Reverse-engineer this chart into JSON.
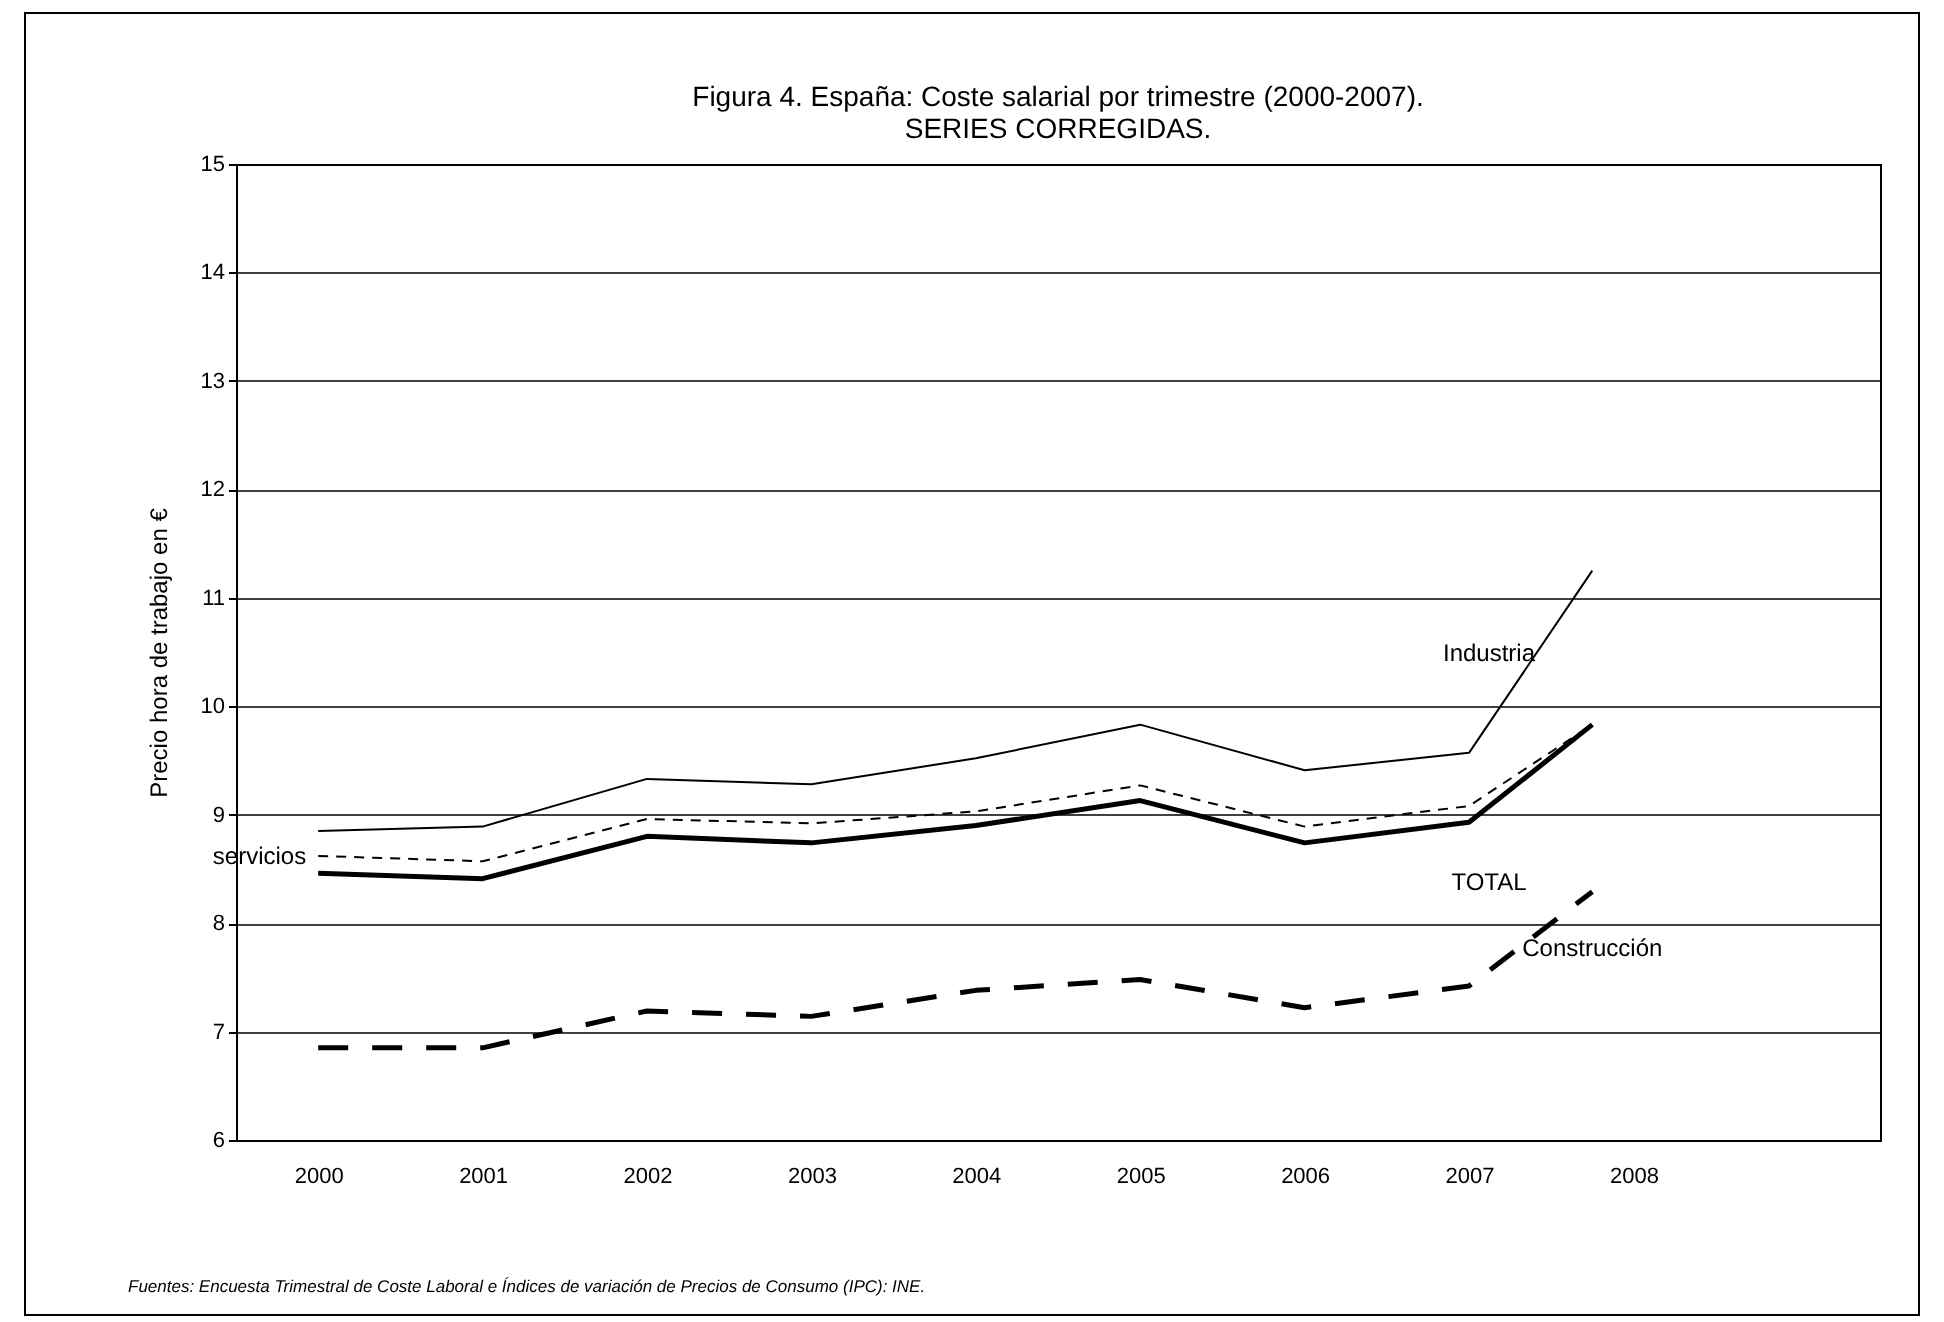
{
  "chart_data": {
    "type": "line",
    "title": "Figura 4. España: Coste salarial por trimestre (2000-2007).",
    "subtitle": "SERIES CORREGIDAS.",
    "ylabel": "Precio hora de trabajo en €",
    "x": [
      2000,
      2001,
      2002,
      2003,
      2004,
      2005,
      2006,
      2007,
      2007.75
    ],
    "xlim": [
      1999.5,
      2009.5
    ],
    "xticks": [
      2000,
      2001,
      2002,
      2003,
      2004,
      2005,
      2006,
      2007,
      2008
    ],
    "ylim": [
      6,
      15
    ],
    "yticks": [
      6,
      7,
      8,
      9,
      10,
      11,
      12,
      13,
      14,
      15
    ],
    "series": [
      {
        "name": "Industria",
        "color": "#000000",
        "line_style": "solid",
        "values": [
          8.85,
          8.89,
          9.33,
          9.28,
          9.52,
          9.83,
          9.41,
          9.57,
          11.25
        ]
      },
      {
        "name": "servicios",
        "color": "#000000",
        "line_style": "dashed",
        "values": [
          8.62,
          8.57,
          8.96,
          8.92,
          9.03,
          9.27,
          8.89,
          9.08,
          9.83
        ]
      },
      {
        "name": "TOTAL",
        "color": "#000000",
        "line_style": "solid",
        "values": [
          8.46,
          8.41,
          8.8,
          8.74,
          8.9,
          9.13,
          8.74,
          8.93,
          9.83
        ]
      },
      {
        "name": "Construcción",
        "color": "#000000",
        "line_style": "dashed",
        "values": [
          6.85,
          6.85,
          7.19,
          7.14,
          7.38,
          7.48,
          7.22,
          7.42,
          8.29
        ]
      }
    ],
    "grid": "y",
    "legend": false,
    "marker": "none",
    "annotations": [
      "Fuentes: Encuesta Trimestral de Coste Laboral e Índices de variación de Precios de Consumo (IPC): INE."
    ]
  }
}
